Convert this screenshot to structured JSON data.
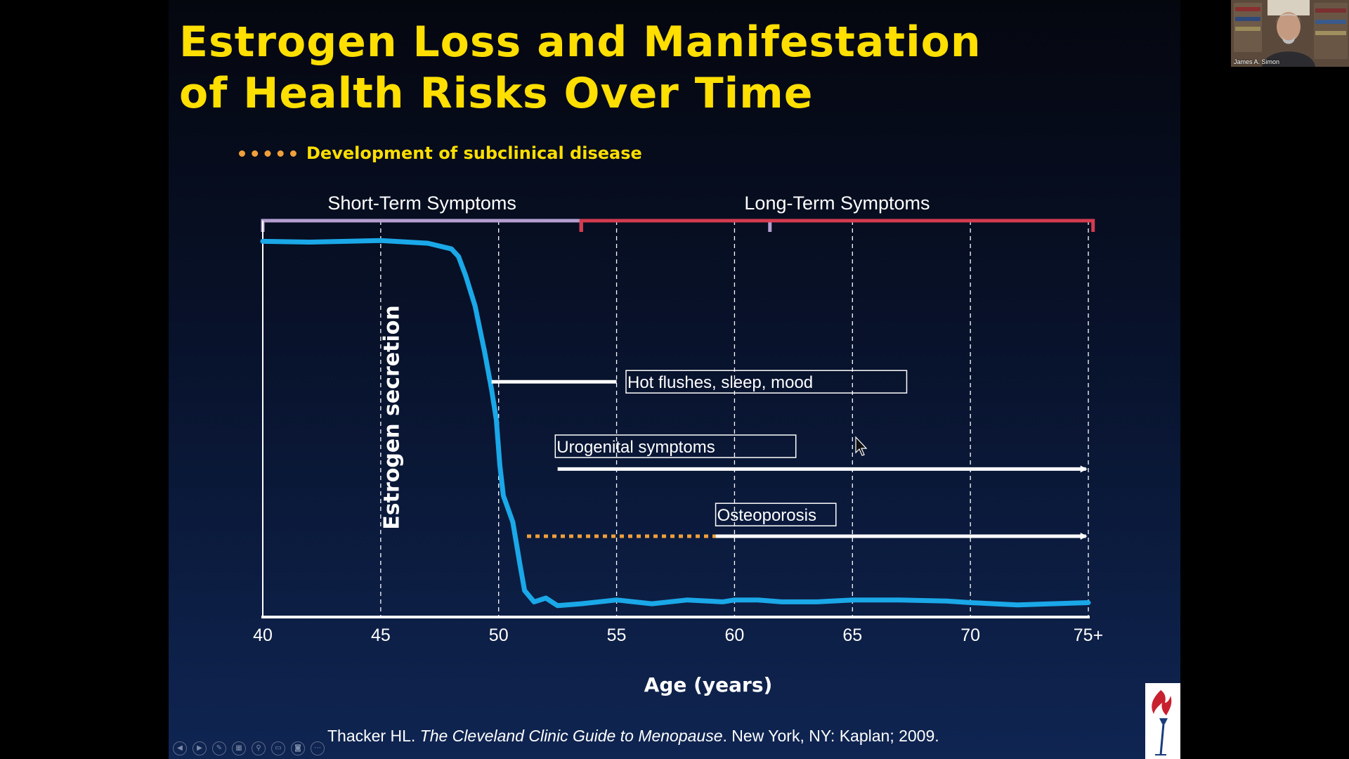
{
  "slide": {
    "title_lines": [
      "Estrogen Loss and Manifestation",
      "of Health Risks Over Time"
    ],
    "legend_label": "Development of subclinical disease",
    "citation": {
      "author": "Thacker HL. ",
      "book": "The Cleveland Clinic Guide to Menopause",
      "rest": ". New York, NY: Kaplan; 2009."
    }
  },
  "webcam": {
    "name": "James A. Simon"
  },
  "chart_data": {
    "type": "line",
    "title": "",
    "xlabel": "Age (years)",
    "ylabel": "Estrogen secretion",
    "xlim": [
      40,
      75
    ],
    "ylim": [
      0,
      1
    ],
    "x_ticks": [
      40,
      45,
      50,
      55,
      60,
      65,
      70,
      75
    ],
    "x_tick_labels": [
      "40",
      "45",
      "50",
      "55",
      "60",
      "65",
      "70",
      "75+"
    ],
    "grid": "vertical dashed at each tick",
    "series": [
      {
        "name": "",
        "color": "#1aa8e8",
        "points": [
          [
            40,
            0.99
          ],
          [
            42,
            0.988
          ],
          [
            45,
            0.992
          ],
          [
            47,
            0.985
          ],
          [
            48,
            0.97
          ],
          [
            48.3,
            0.95
          ],
          [
            48.6,
            0.9
          ],
          [
            49,
            0.82
          ],
          [
            49.4,
            0.7
          ],
          [
            49.7,
            0.6
          ],
          [
            49.9,
            0.52
          ],
          [
            50.05,
            0.4
          ],
          [
            50.2,
            0.32
          ],
          [
            50.6,
            0.25
          ],
          [
            50.9,
            0.14
          ],
          [
            51.1,
            0.07
          ],
          [
            51.5,
            0.04
          ],
          [
            52,
            0.05
          ],
          [
            52.5,
            0.03
          ],
          [
            53.5,
            0.035
          ],
          [
            55,
            0.045
          ],
          [
            56.5,
            0.035
          ],
          [
            58,
            0.045
          ],
          [
            59.5,
            0.04
          ],
          [
            60,
            0.045
          ],
          [
            61,
            0.045
          ],
          [
            62,
            0.04
          ],
          [
            63.5,
            0.04
          ],
          [
            65,
            0.045
          ],
          [
            67,
            0.045
          ],
          [
            69,
            0.042
          ],
          [
            70,
            0.038
          ],
          [
            71,
            0.035
          ],
          [
            72,
            0.032
          ],
          [
            73,
            0.034
          ],
          [
            75,
            0.038
          ]
        ]
      }
    ],
    "phases": [
      {
        "label": "Short-Term Symptoms",
        "start": 40,
        "end": 53.5,
        "color": "#b49fd0",
        "tick": 61.5
      },
      {
        "label": "Long-Term Symptoms",
        "start": 53.5,
        "end": 75.2,
        "color": "#d43b4f"
      }
    ],
    "annotations": [
      {
        "label": "Hot flushes, sleep, mood",
        "line_from": 49.7,
        "line_to": 55,
        "y": 0.62,
        "box_from": 55.4,
        "box_to": 67.3,
        "arrow": false
      },
      {
        "label": "Urogenital symptoms",
        "line_from": 52.5,
        "line_to": 74.9,
        "y": 0.39,
        "box_from": 52.4,
        "box_to": 62.6,
        "box_y": 0.45,
        "arrow": true
      },
      {
        "label": "Osteoporosis",
        "subclinical_from": 51.2,
        "subclinical_to": 59.2,
        "line_from": 59.2,
        "line_to": 74.9,
        "y": 0.213,
        "box_from": 59.2,
        "box_to": 64.3,
        "box_y": 0.27,
        "arrow": true
      }
    ]
  }
}
